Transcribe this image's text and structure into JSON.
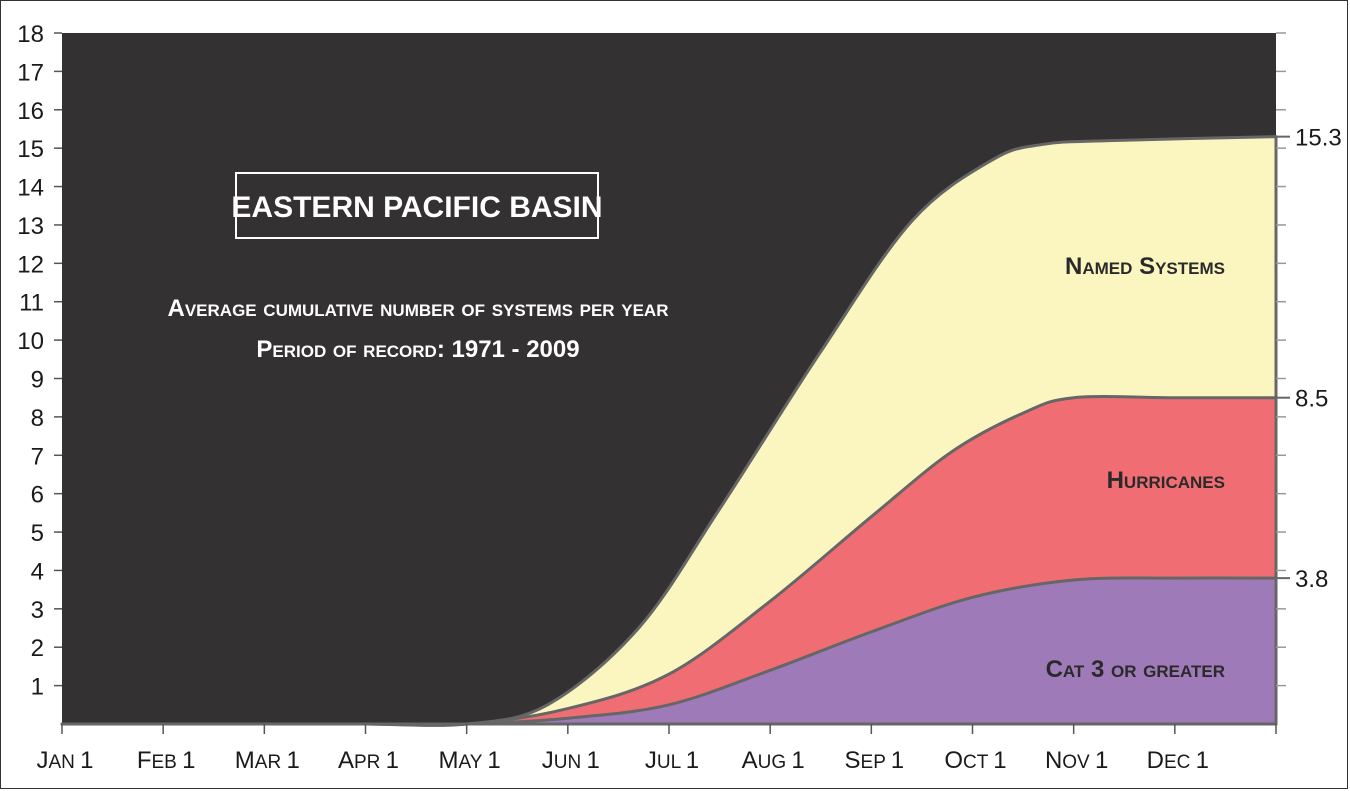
{
  "chart_data": {
    "type": "area",
    "title": "EASTERN PACIFIC BASIN",
    "subtitle_lines": [
      "Average cumulative number of systems per year",
      "Period of record: 1971 - 2009"
    ],
    "categories": [
      "Jan 1",
      "Feb 1",
      "Mar 1",
      "Apr 1",
      "May 1",
      "Jun 1",
      "Jul 1",
      "Aug 1",
      "Sep 1",
      "Oct 1",
      "Nov 1",
      "Dec 1"
    ],
    "x_end": "Dec 31",
    "ylim": [
      0,
      18
    ],
    "yticks": [
      1,
      2,
      3,
      4,
      5,
      6,
      7,
      8,
      9,
      10,
      11,
      12,
      13,
      14,
      15,
      16,
      17,
      18
    ],
    "grid": false,
    "series": [
      {
        "name": "Named Systems",
        "color": "#fbf5c0",
        "end_label": "15.3",
        "points": [
          [
            0,
            0
          ],
          [
            1,
            0
          ],
          [
            2,
            0
          ],
          [
            3,
            0
          ],
          [
            4,
            0
          ],
          [
            4.8,
            0.5
          ],
          [
            5.7,
            2.5
          ],
          [
            6.5,
            5.6
          ],
          [
            7.5,
            9.7
          ],
          [
            8.4,
            13.1
          ],
          [
            9.2,
            14.7
          ],
          [
            9.7,
            15.1
          ],
          [
            10.4,
            15.2
          ],
          [
            12,
            15.3
          ]
        ]
      },
      {
        "name": "Hurricanes",
        "color": "#f06e73",
        "end_label": "8.5",
        "points": [
          [
            0,
            0
          ],
          [
            1,
            0
          ],
          [
            2,
            0
          ],
          [
            3,
            0
          ],
          [
            4,
            0
          ],
          [
            5,
            0.4
          ],
          [
            6,
            1.3
          ],
          [
            7,
            3.2
          ],
          [
            8,
            5.4
          ],
          [
            8.8,
            7.1
          ],
          [
            9.5,
            8.1
          ],
          [
            10,
            8.5
          ],
          [
            11,
            8.5
          ],
          [
            12,
            8.5
          ]
        ]
      },
      {
        "name": "Cat 3 or greater",
        "color": "#9e7bb8",
        "end_label": "3.8",
        "points": [
          [
            0,
            0
          ],
          [
            1,
            0
          ],
          [
            2,
            0
          ],
          [
            3,
            0
          ],
          [
            4,
            0
          ],
          [
            5,
            0.15
          ],
          [
            6,
            0.5
          ],
          [
            7,
            1.4
          ],
          [
            8,
            2.4
          ],
          [
            9,
            3.3
          ],
          [
            10,
            3.75
          ],
          [
            11,
            3.8
          ],
          [
            12,
            3.8
          ]
        ]
      }
    ],
    "colors": {
      "plot_background": "#333132",
      "outline": "#666666",
      "text_on_dark": "#ffffff"
    }
  }
}
